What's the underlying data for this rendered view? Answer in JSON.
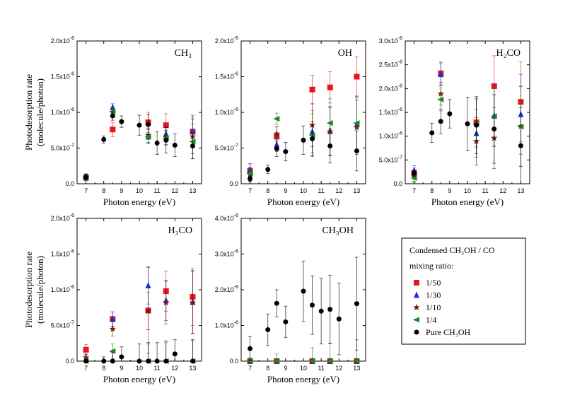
{
  "colors": {
    "r1_50": "#e8141b",
    "r1_30": "#1a2ee0",
    "r1_10": "#7a1a10",
    "r1_4": "#1a8a1a",
    "pure": "#000000"
  },
  "legend": {
    "title_line1": "Condensed CH₃OH / CO",
    "title_line2": "mixing ratio:",
    "entries": [
      {
        "key": "r1_50",
        "label": "1/50",
        "marker": "square"
      },
      {
        "key": "r1_30",
        "label": "1/30",
        "marker": "triangle-up"
      },
      {
        "key": "r1_10",
        "label": "1/10",
        "marker": "star"
      },
      {
        "key": "r1_4",
        "label": "1/4",
        "marker": "triangle-left"
      },
      {
        "key": "pure",
        "label": "Pure CH₃OH",
        "marker": "circle"
      }
    ]
  },
  "chart_data": [
    {
      "id": "ch3",
      "type": "scatter",
      "title": "CH₃",
      "xlabel": "Photon energy (eV)",
      "ylabel_line1": "Photodesorption rate",
      "ylabel_line2": "(molecule/photon)",
      "xlim": [
        6.5,
        13.5
      ],
      "ylim": [
        0,
        2e-06
      ],
      "xticks": [
        7,
        8,
        9,
        10,
        11,
        12,
        13
      ],
      "yticks": [
        0,
        5e-07,
        1e-06,
        1.5e-06,
        2e-06
      ],
      "ytick_labels": [
        {
          "base": "0.0",
          "exp": ""
        },
        {
          "base": "5.0x10",
          "exp": "-7"
        },
        {
          "base": "1.0x10",
          "exp": "-6"
        },
        {
          "base": "1.5x10",
          "exp": "-6"
        },
        {
          "base": "2.0x10",
          "exp": "-6"
        }
      ],
      "series": [
        {
          "key": "r1_50",
          "x": [
            7,
            8.5,
            10.5,
            11.5,
            13
          ],
          "y": [
            8.5e-08,
            7.6e-07,
            8.6e-07,
            8.2e-07,
            7.3e-07
          ],
          "err": [
            4e-08,
            1e-07,
            1.4e-07,
            1.6e-07,
            2e-07
          ]
        },
        {
          "key": "r1_30",
          "x": [
            7,
            8.5,
            10.5,
            11.5,
            13
          ],
          "y": [
            1e-07,
            1.07e-06,
            6.6e-07,
            7e-07,
            7.4e-07
          ],
          "err": [
            4e-08,
            5e-08,
            1e-07,
            1e-07,
            2.2e-07
          ]
        },
        {
          "key": "r1_10",
          "x": [
            7,
            8.5,
            10.5,
            11.5,
            13
          ],
          "y": [
            9e-08,
            1e-06,
            6.8e-07,
            6.5e-07,
            6.6e-07
          ],
          "err": [
            4e-08,
            6e-08,
            1e-07,
            1e-07,
            2.4e-07
          ]
        },
        {
          "key": "r1_4",
          "x": [
            7,
            8.5,
            10.5,
            11.5,
            13
          ],
          "y": [
            9.5e-08,
            1.01e-06,
            6.6e-07,
            6.4e-07,
            5.9e-07
          ],
          "err": [
            4e-08,
            6e-08,
            1e-07,
            1e-07,
            2.4e-07
          ]
        },
        {
          "key": "pure",
          "x": [
            7,
            8,
            8.5,
            9,
            10,
            10.5,
            11,
            11.5,
            12,
            13
          ],
          "y": [
            9e-08,
            6.2e-07,
            9.5e-07,
            8.7e-07,
            8.2e-07,
            8.3e-07,
            5.7e-07,
            6.1e-07,
            5.4e-07,
            5.3e-07
          ],
          "err": [
            4e-08,
            5e-08,
            6e-08,
            8e-08,
            1.4e-07,
            1.4e-07,
            1.6e-07,
            1.8e-07,
            1.6e-07,
            1.8e-07
          ]
        }
      ]
    },
    {
      "id": "oh",
      "type": "scatter",
      "title": "OH",
      "xlabel": "Photon energy (eV)",
      "xlim": [
        6.5,
        13.5
      ],
      "ylim": [
        0,
        2e-06
      ],
      "xticks": [
        7,
        8,
        9,
        10,
        11,
        12,
        13
      ],
      "yticks": [
        0,
        5e-07,
        1e-06,
        1.5e-06,
        2e-06
      ],
      "ytick_labels": [
        {
          "base": "0.0",
          "exp": ""
        },
        {
          "base": "5.0x10",
          "exp": "-7"
        },
        {
          "base": "1.0x10",
          "exp": "-6"
        },
        {
          "base": "1.5x10",
          "exp": "-6"
        },
        {
          "base": "2.0x10",
          "exp": "-6"
        }
      ],
      "series": [
        {
          "key": "r1_50",
          "x": [
            7,
            8.5,
            10.5,
            11.5,
            13
          ],
          "y": [
            1.8e-07,
            6.6e-07,
            1.32e-06,
            1.35e-06,
            1.5e-06
          ],
          "err": [
            1e-07,
            1.4e-07,
            2e-07,
            2.2e-07,
            2.8e-07
          ]
        },
        {
          "key": "r1_30",
          "x": [
            7,
            8.5,
            10.5,
            11.5,
            13
          ],
          "y": [
            1.9e-07,
            5.5e-07,
            7.3e-07,
            7.4e-07,
            8.3e-07
          ],
          "err": [
            9e-08,
            1e-07,
            3e-07,
            3.4e-07,
            3.8e-07
          ]
        },
        {
          "key": "r1_10",
          "x": [
            7,
            8.5,
            10.5,
            11.5,
            13
          ],
          "y": [
            1.3e-07,
            7e-07,
            8.2e-07,
            7.3e-07,
            7.9e-07
          ],
          "err": [
            9e-08,
            1e-07,
            3e-07,
            3.4e-07,
            3.8e-07
          ]
        },
        {
          "key": "r1_4",
          "x": [
            7,
            8.5,
            10.5,
            11.5,
            13
          ],
          "y": [
            1.4e-07,
            9.1e-07,
            6.8e-07,
            8.5e-07,
            8.5e-07
          ],
          "err": [
            9e-08,
            8e-08,
            3e-07,
            3.4e-07,
            3.8e-07
          ]
        },
        {
          "key": "pure",
          "x": [
            7,
            8,
            8.5,
            9,
            10,
            10.5,
            11.5,
            13
          ],
          "y": [
            7e-08,
            2e-07,
            4.9e-07,
            4.5e-07,
            6.1e-07,
            6.3e-07,
            5.3e-07,
            4.6e-07
          ],
          "err": [
            4e-08,
            6e-08,
            1.1e-07,
            1.3e-07,
            2e-07,
            2.4e-07,
            2.4e-07,
            2.8e-07
          ]
        }
      ]
    },
    {
      "id": "h2co",
      "type": "scatter",
      "title": "H₂CO",
      "xlabel": "Photon energy (eV)",
      "xlim": [
        6.5,
        13.5
      ],
      "ylim": [
        0,
        3e-06
      ],
      "xticks": [
        7,
        8,
        9,
        10,
        11,
        12,
        13
      ],
      "yticks": [
        0,
        5e-07,
        1e-06,
        1.5e-06,
        2e-06,
        2.5e-06,
        3e-06
      ],
      "ytick_labels": [
        {
          "base": "0.0",
          "exp": ""
        },
        {
          "base": "5.0x10",
          "exp": "-7"
        },
        {
          "base": "1.0x10",
          "exp": "-6"
        },
        {
          "base": "1.5x10",
          "exp": "-6"
        },
        {
          "base": "2.0x10",
          "exp": "-6"
        },
        {
          "base": "2.5x10",
          "exp": "-6"
        },
        {
          "base": "3.0x10",
          "exp": "-6"
        }
      ],
      "series": [
        {
          "key": "r1_50",
          "x": [
            7,
            8.5,
            10.5,
            11.5,
            13
          ],
          "y": [
            2.3e-07,
            2.32e-06,
            1.29e-06,
            2.05e-06,
            1.72e-06
          ],
          "err": [
            1e-07,
            2.4e-07,
            5e-07,
            6.4e-07,
            8.4e-07
          ]
        },
        {
          "key": "r1_30",
          "x": [
            7,
            8.5,
            10.5,
            11.5,
            13
          ],
          "y": [
            2.8e-07,
            2.3e-06,
            1.06e-06,
            1.43e-06,
            1.46e-06
          ],
          "err": [
            1e-07,
            2.4e-07,
            5e-07,
            6.4e-07,
            8.4e-07
          ]
        },
        {
          "key": "r1_10",
          "x": [
            7,
            8.5,
            10.5,
            11.5,
            13
          ],
          "y": [
            1.5e-07,
            1.89e-06,
            8.9e-07,
            9.6e-07,
            1.21e-06
          ],
          "err": [
            1e-07,
            2.4e-07,
            5e-07,
            6.4e-07,
            8.4e-07
          ]
        },
        {
          "key": "r1_4",
          "x": [
            7,
            8.5,
            10.5,
            11.5,
            13
          ],
          "y": [
            1.2e-07,
            1.77e-06,
            1.26e-06,
            1.42e-06,
            1.2e-06
          ],
          "err": [
            1e-07,
            2.4e-07,
            5e-07,
            6.4e-07,
            8.4e-07
          ]
        },
        {
          "key": "pure",
          "x": [
            7,
            8,
            8.5,
            9,
            10,
            10.5,
            11.5,
            13
          ],
          "y": [
            2.2e-07,
            1.07e-06,
            1.31e-06,
            1.47e-06,
            1.26e-06,
            1.23e-06,
            1.15e-06,
            8e-07
          ],
          "err": [
            6e-08,
            2e-07,
            2.6e-07,
            3e-07,
            5.6e-07,
            6e-07,
            7.2e-07,
            8e-07
          ]
        }
      ]
    },
    {
      "id": "h3co",
      "type": "scatter",
      "title": "H₃CO",
      "xlabel": "Photon energy (eV)",
      "ylabel_line1": "Photodesorption rate",
      "ylabel_line2": "(molecule/photon)",
      "xlim": [
        6.5,
        13.5
      ],
      "ylim": [
        0,
        2e-06
      ],
      "xticks": [
        7,
        8,
        9,
        10,
        11,
        12,
        13
      ],
      "yticks": [
        0,
        5e-07,
        1e-06,
        1.5e-06,
        2e-06
      ],
      "ytick_labels": [
        {
          "base": "0.0",
          "exp": ""
        },
        {
          "base": "5.0x10",
          "exp": "-7"
        },
        {
          "base": "1.0x10",
          "exp": "-6"
        },
        {
          "base": "1.5x10",
          "exp": "-6"
        },
        {
          "base": "2.0x10",
          "exp": "-6"
        }
      ],
      "series": [
        {
          "key": "r1_50",
          "x": [
            7,
            8.5,
            10.5,
            11.5,
            13
          ],
          "y": [
            1.6e-07,
            5.9e-07,
            7.1e-07,
            9.8e-07,
            9e-07
          ],
          "err": [
            7e-08,
            1e-07,
            6e-07,
            2.8e-07,
            4e-07
          ]
        },
        {
          "key": "r1_30",
          "x": [
            7,
            8.5,
            10.5,
            11.5,
            13
          ],
          "y": [
            4e-08,
            5.9e-07,
            1.06e-06,
            8.5e-07,
            8.3e-07
          ],
          "err": [
            5e-08,
            1e-07,
            2.6e-07,
            2.8e-07,
            4.4e-07
          ]
        },
        {
          "key": "r1_10",
          "x": [
            7,
            8.5,
            10.5,
            11.5,
            13
          ],
          "y": [
            5e-08,
            4.5e-07,
            7e-07,
            8.2e-07,
            8.2e-07
          ],
          "err": [
            5e-08,
            1e-07,
            2.6e-07,
            3e-07,
            4.4e-07
          ]
        },
        {
          "key": "r1_4",
          "x": [
            7,
            8.5,
            10.5,
            11.5,
            13
          ],
          "y": [
            2e-09,
            1.4e-07,
            0,
            0,
            0
          ],
          "err": [
            5e-08,
            1e-07,
            2.4e-07,
            2.6e-07,
            2.8e-07
          ]
        },
        {
          "key": "pure",
          "x": [
            7,
            8,
            8.5,
            9,
            10,
            10.5,
            11,
            11.5,
            12,
            13
          ],
          "y": [
            0,
            0,
            0,
            6e-08,
            0,
            0,
            0,
            0,
            1e-07,
            0
          ],
          "err": [
            3e-08,
            6e-08,
            1.2e-07,
            1.4e-07,
            2.4e-07,
            2.6e-07,
            2.6e-07,
            2.8e-07,
            2e-07,
            3e-07
          ]
        }
      ]
    },
    {
      "id": "ch3oh",
      "type": "scatter",
      "title": "CH₃OH",
      "xlabel": "Photon energy (eV)",
      "xlim": [
        6.5,
        13.5
      ],
      "ylim": [
        0,
        4e-06
      ],
      "xticks": [
        7,
        8,
        9,
        10,
        11,
        12,
        13
      ],
      "yticks": [
        0,
        1e-06,
        2e-06,
        3e-06,
        4e-06
      ],
      "ytick_labels": [
        {
          "base": "0.0",
          "exp": ""
        },
        {
          "base": "1.0x10",
          "exp": "-6"
        },
        {
          "base": "2.0x10",
          "exp": "-6"
        },
        {
          "base": "3.0x10",
          "exp": "-6"
        },
        {
          "base": "4.0x10",
          "exp": "-6"
        }
      ],
      "series": [
        {
          "key": "r1_50",
          "x": [
            7,
            8.5,
            10.5,
            11.5,
            13
          ],
          "y": [
            0,
            0,
            0,
            0,
            0
          ],
          "err": [
            2e-08,
            2e-08,
            4e-08,
            4e-08,
            6e-08
          ]
        },
        {
          "key": "r1_30",
          "x": [
            7,
            8.5,
            10.5,
            11.5,
            13
          ],
          "y": [
            0,
            0,
            0,
            0,
            0
          ],
          "err": [
            2e-08,
            2e-08,
            4e-08,
            4e-08,
            6e-08
          ]
        },
        {
          "key": "r1_10",
          "x": [
            7,
            8.5,
            10.5,
            11.5,
            13
          ],
          "y": [
            0,
            0,
            0,
            0,
            0
          ],
          "err": [
            2e-08,
            2e-08,
            4e-08,
            4e-08,
            6e-08
          ]
        },
        {
          "key": "r1_4",
          "x": [
            7,
            8.5,
            10.5,
            11.5,
            13
          ],
          "y": [
            0,
            0,
            0,
            0,
            0
          ],
          "err": [
            1e-07,
            2e-07,
            3.8e-07,
            5e-07,
            6e-07
          ]
        },
        {
          "key": "pure",
          "x": [
            7,
            8,
            8.5,
            9,
            10,
            10.5,
            11,
            11.5,
            12,
            13
          ],
          "y": [
            3.5e-07,
            8.8e-07,
            1.62e-06,
            1.1e-06,
            1.96e-06,
            1.57e-06,
            1.4e-06,
            1.45e-06,
            1.18e-06,
            1.61e-06
          ],
          "err": [
            3.4e-07,
            4.4e-07,
            3.8e-07,
            4.4e-07,
            8.4e-07,
            8.2e-07,
            9.2e-07,
            9.6e-07,
            1e-06,
            1.3e-06
          ]
        }
      ]
    }
  ]
}
